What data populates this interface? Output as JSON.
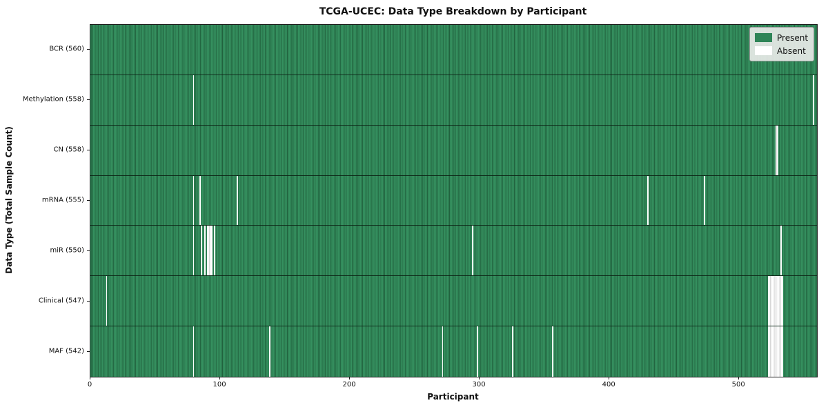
{
  "title": "TCGA-UCEC: Data Type Breakdown by Participant",
  "xlabel": "Participant",
  "ylabel": "Data Type (Total Sample Count)",
  "colors": {
    "present": "#2e8457",
    "present_edge": "#16492c",
    "absent": "#ffffff",
    "legend_bg": "#e8eae8"
  },
  "chart_data": {
    "type": "heatmap",
    "title": "TCGA-UCEC: Data Type Breakdown by Participant",
    "xlabel": "Participant",
    "ylabel": "Data Type (Total Sample Count)",
    "n_participants": 560,
    "x_ticks": [
      0,
      100,
      200,
      300,
      400,
      500
    ],
    "cell_states": {
      "present": 1,
      "absent": 0
    },
    "legend_entries": [
      {
        "key": "present",
        "label": "Present",
        "color": "#2e8457"
      },
      {
        "key": "absent",
        "label": "Absent",
        "color": "#ffffff"
      }
    ],
    "rows": [
      {
        "key": "bcr",
        "label": "BCR (560)",
        "count": 560,
        "absent": []
      },
      {
        "key": "methylation",
        "label": "Methylation (558)",
        "count": 558,
        "absent": [
          79,
          557
        ]
      },
      {
        "key": "cn",
        "label": "CN (558)",
        "count": 558,
        "absent": [
          [
            528,
            529
          ]
        ]
      },
      {
        "key": "mrna",
        "label": "mRNA (555)",
        "count": 555,
        "absent": [
          79,
          84,
          113,
          429,
          473
        ]
      },
      {
        "key": "mir",
        "label": "miR (550)",
        "count": 550,
        "absent": [
          79,
          85,
          88,
          [
            90,
            93
          ],
          95,
          294,
          532
        ]
      },
      {
        "key": "clinical",
        "label": "Clinical (547)",
        "count": 547,
        "absent": [
          12,
          [
            522,
            533
          ]
        ]
      },
      {
        "key": "maf",
        "label": "MAF (542)",
        "count": 542,
        "absent": [
          79,
          138,
          271,
          298,
          325,
          356,
          [
            522,
            533
          ]
        ]
      }
    ]
  }
}
